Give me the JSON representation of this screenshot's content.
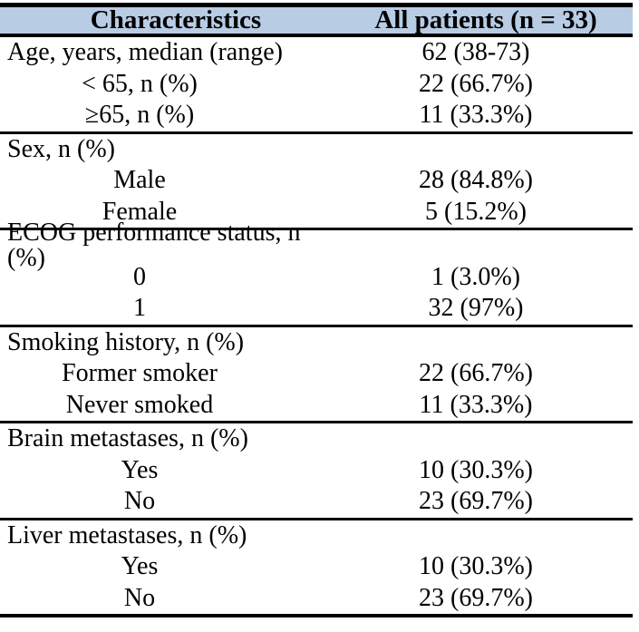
{
  "table": {
    "header": {
      "characteristics": "Characteristics",
      "all_patients": "All patients (n = 33)"
    },
    "sections": [
      {
        "name": "age",
        "rows": [
          {
            "label": "Age, years, median (range)",
            "value": "62 (38-73)"
          },
          {
            "label": "< 65, n (%)",
            "value": "22 (66.7%)"
          },
          {
            "label": "≥65, n (%)",
            "value": "11 (33.3%)"
          }
        ]
      },
      {
        "name": "sex",
        "rows": [
          {
            "label": "Sex, n (%)",
            "value": ""
          },
          {
            "label": "Male",
            "value": "28 (84.8%)"
          },
          {
            "label": "Female",
            "value": "5 (15.2%)"
          }
        ]
      },
      {
        "name": "ecog",
        "rows": [
          {
            "label": "ECOG performance status, n (%)",
            "value": ""
          },
          {
            "label": "0",
            "value": "1 (3.0%)"
          },
          {
            "label": "1",
            "value": "32 (97%)"
          }
        ]
      },
      {
        "name": "smoking",
        "rows": [
          {
            "label": "Smoking history, n (%)",
            "value": ""
          },
          {
            "label": "Former smoker",
            "value": "22 (66.7%)"
          },
          {
            "label": "Never smoked",
            "value": "11 (33.3%)"
          }
        ]
      },
      {
        "name": "brain-metastases",
        "rows": [
          {
            "label": "Brain metastases, n (%)",
            "value": ""
          },
          {
            "label": "Yes",
            "value": "10 (30.3%)"
          },
          {
            "label": "No",
            "value": "23 (69.7%)"
          }
        ]
      },
      {
        "name": "liver-metastases",
        "rows": [
          {
            "label": "Liver metastases, n (%)",
            "value": ""
          },
          {
            "label": "Yes",
            "value": "10 (30.3%)"
          },
          {
            "label": "No",
            "value": "23 (69.7%)"
          }
        ]
      }
    ]
  },
  "colors": {
    "header_bg": "#b8cce4",
    "border": "#000000",
    "text": "#000000"
  }
}
